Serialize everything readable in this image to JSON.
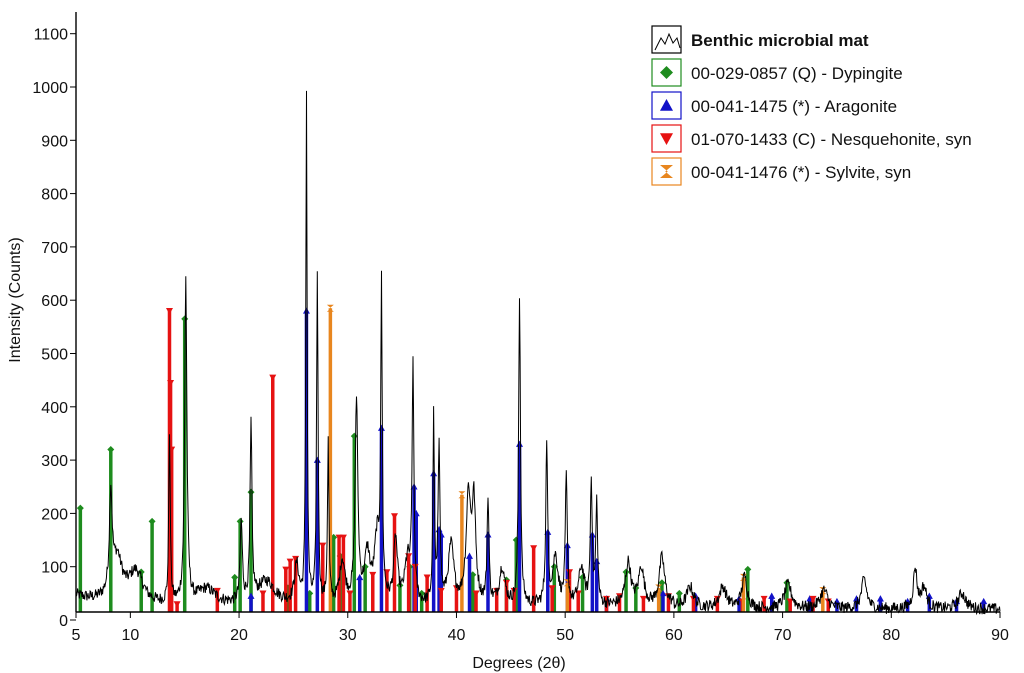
{
  "chart_data": {
    "type": "line",
    "xlabel": "Degrees (2θ)",
    "ylabel": "Intensity (Counts)",
    "xlim": [
      5,
      90
    ],
    "ylim": [
      0,
      1100
    ],
    "x_ticks": [
      "5",
      "10",
      "20",
      "30",
      "40",
      "50",
      "60",
      "70",
      "80",
      "90"
    ],
    "y_ticks": [
      "0",
      "100",
      "200",
      "300",
      "400",
      "500",
      "600",
      "700",
      "800",
      "900",
      "1000",
      "1100"
    ],
    "grid": false,
    "legend_position": "top-right",
    "pattern": {
      "name": "Benthic microbial mat",
      "color": "#000000",
      "baseline": 25,
      "peaks": [
        [
          8.2,
          180,
          0.15
        ],
        [
          8.8,
          80,
          0.6
        ],
        [
          10.5,
          60,
          0.8
        ],
        [
          13.6,
          320,
          0.08
        ],
        [
          15.1,
          610,
          0.12
        ],
        [
          17.0,
          30,
          1.0
        ],
        [
          20.2,
          150,
          0.12
        ],
        [
          21.1,
          330,
          0.1
        ],
        [
          22.5,
          45,
          1.0
        ],
        [
          25.3,
          70,
          0.25
        ],
        [
          26.2,
          960,
          0.07
        ],
        [
          27.2,
          620,
          0.08
        ],
        [
          28.2,
          300,
          0.08
        ],
        [
          29.5,
          80,
          0.3
        ],
        [
          30.8,
          380,
          0.15
        ],
        [
          31.8,
          90,
          0.3
        ],
        [
          32.7,
          120,
          0.3
        ],
        [
          33.1,
          565,
          0.08
        ],
        [
          34.4,
          120,
          0.2
        ],
        [
          35.5,
          80,
          0.3
        ],
        [
          36.0,
          430,
          0.1
        ],
        [
          37.9,
          345,
          0.08
        ],
        [
          38.4,
          300,
          0.1
        ],
        [
          39.5,
          110,
          0.3
        ],
        [
          41.1,
          200,
          0.25
        ],
        [
          41.6,
          180,
          0.2
        ],
        [
          42.9,
          200,
          0.1
        ],
        [
          44.2,
          70,
          0.3
        ],
        [
          45.8,
          580,
          0.1
        ],
        [
          48.3,
          305,
          0.1
        ],
        [
          49.1,
          90,
          0.3
        ],
        [
          50.1,
          240,
          0.1
        ],
        [
          51.5,
          70,
          0.3
        ],
        [
          52.4,
          235,
          0.1
        ],
        [
          52.9,
          190,
          0.1
        ],
        [
          55.8,
          80,
          0.3
        ],
        [
          57.0,
          70,
          0.3
        ],
        [
          58.9,
          90,
          0.3
        ],
        [
          61.5,
          40,
          0.4
        ],
        [
          64.5,
          40,
          0.4
        ],
        [
          66.5,
          60,
          0.3
        ],
        [
          70.5,
          45,
          0.4
        ],
        [
          73.8,
          35,
          0.4
        ],
        [
          77.5,
          55,
          0.3
        ],
        [
          82.2,
          75,
          0.2
        ],
        [
          83.0,
          40,
          0.3
        ],
        [
          86.5,
          30,
          0.4
        ]
      ]
    },
    "series": [
      {
        "name": "00-029-0857 (Q) - Dypingite",
        "color": "#1e8c1e",
        "marker": "diamond",
        "sticks": [
          [
            5.4,
            210
          ],
          [
            8.2,
            320
          ],
          [
            11.0,
            90
          ],
          [
            12.0,
            185
          ],
          [
            15.0,
            565
          ],
          [
            19.6,
            80
          ],
          [
            20.1,
            185
          ],
          [
            21.1,
            240
          ],
          [
            24.5,
            60
          ],
          [
            26.5,
            50
          ],
          [
            28.7,
            155
          ],
          [
            29.3,
            120
          ],
          [
            30.6,
            345
          ],
          [
            31.6,
            100
          ],
          [
            34.8,
            65
          ],
          [
            35.7,
            100
          ],
          [
            36.8,
            50
          ],
          [
            41.5,
            85
          ],
          [
            44.6,
            75
          ],
          [
            45.5,
            150
          ],
          [
            49.0,
            100
          ],
          [
            51.6,
            80
          ],
          [
            55.6,
            90
          ],
          [
            56.5,
            60
          ],
          [
            58.9,
            70
          ],
          [
            60.5,
            50
          ],
          [
            66.8,
            95
          ],
          [
            70.4,
            70
          ]
        ]
      },
      {
        "name": "00-041-1475 (*) - Aragonite",
        "color": "#1212c8",
        "marker": "triangle",
        "sticks": [
          [
            21.1,
            45
          ],
          [
            26.2,
            580
          ],
          [
            27.2,
            300
          ],
          [
            31.1,
            80
          ],
          [
            33.1,
            360
          ],
          [
            36.1,
            250
          ],
          [
            36.3,
            200
          ],
          [
            37.9,
            275
          ],
          [
            38.4,
            170
          ],
          [
            38.6,
            160
          ],
          [
            41.2,
            120
          ],
          [
            42.9,
            160
          ],
          [
            45.8,
            330
          ],
          [
            48.4,
            165
          ],
          [
            50.2,
            140
          ],
          [
            52.5,
            160
          ],
          [
            52.9,
            110
          ],
          [
            53.8,
            40
          ],
          [
            59.0,
            50
          ],
          [
            62.0,
            45
          ],
          [
            66.0,
            40
          ],
          [
            69.0,
            45
          ],
          [
            72.5,
            40
          ],
          [
            75.0,
            35
          ],
          [
            76.8,
            40
          ],
          [
            79.0,
            40
          ],
          [
            81.5,
            35
          ],
          [
            83.5,
            45
          ],
          [
            86.0,
            35
          ],
          [
            88.5,
            35
          ]
        ]
      },
      {
        "name": "01-070-1433 (C) - Nesquehonite, syn",
        "color": "#e61212",
        "marker": "triangle-down",
        "sticks": [
          [
            13.6,
            580
          ],
          [
            13.7,
            445
          ],
          [
            13.8,
            320
          ],
          [
            14.3,
            30
          ],
          [
            18.0,
            55
          ],
          [
            22.2,
            50
          ],
          [
            23.1,
            455
          ],
          [
            24.3,
            95
          ],
          [
            24.7,
            110
          ],
          [
            25.2,
            115
          ],
          [
            27.7,
            140
          ],
          [
            29.2,
            155
          ],
          [
            29.6,
            155
          ],
          [
            30.2,
            50
          ],
          [
            32.3,
            85
          ],
          [
            33.6,
            90
          ],
          [
            34.3,
            195
          ],
          [
            35.6,
            120
          ],
          [
            36.2,
            100
          ],
          [
            37.3,
            80
          ],
          [
            38.6,
            55
          ],
          [
            40.0,
            60
          ],
          [
            41.8,
            50
          ],
          [
            43.7,
            55
          ],
          [
            44.6,
            70
          ],
          [
            45.3,
            55
          ],
          [
            47.1,
            135
          ],
          [
            48.8,
            60
          ],
          [
            50.4,
            90
          ],
          [
            51.2,
            50
          ],
          [
            53.8,
            40
          ],
          [
            55.0,
            45
          ],
          [
            57.2,
            40
          ],
          [
            59.5,
            45
          ],
          [
            61.8,
            40
          ],
          [
            64.0,
            40
          ],
          [
            66.3,
            35
          ],
          [
            68.3,
            40
          ],
          [
            70.7,
            35
          ],
          [
            72.8,
            40
          ],
          [
            74.2,
            35
          ]
        ]
      },
      {
        "name": "00-041-1476 (*) - Sylvite, syn",
        "color": "#e8861e",
        "marker": "hourglass",
        "sticks": [
          [
            28.4,
            585
          ],
          [
            40.5,
            235
          ],
          [
            50.2,
            70
          ],
          [
            58.6,
            60
          ],
          [
            66.4,
            80
          ],
          [
            73.7,
            55
          ]
        ]
      }
    ]
  }
}
